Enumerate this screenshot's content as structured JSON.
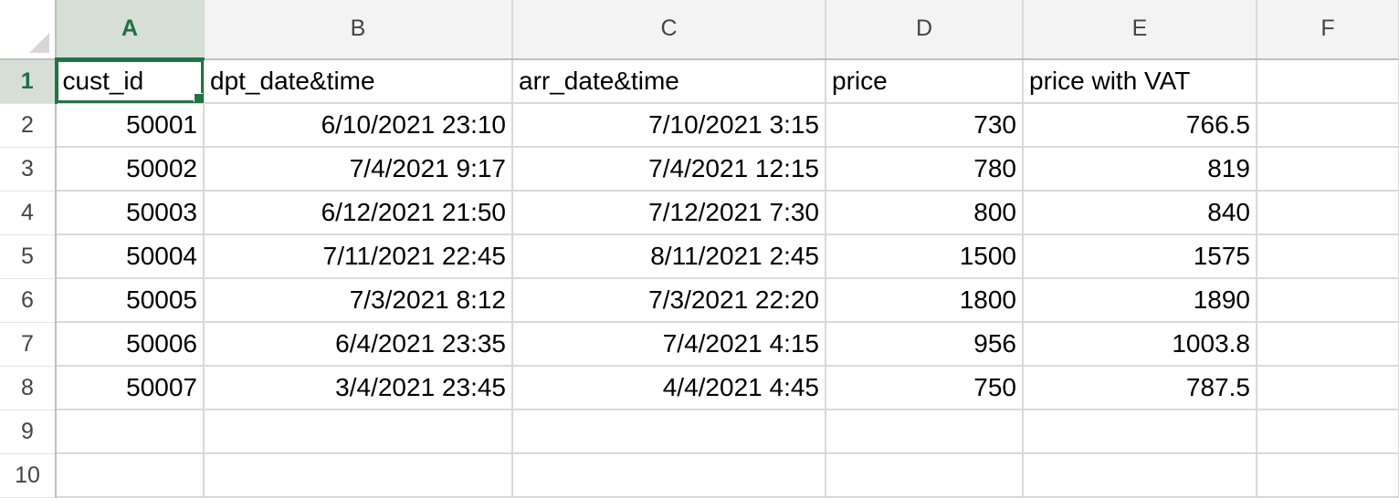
{
  "columns": [
    "A",
    "B",
    "C",
    "D",
    "E",
    "F"
  ],
  "row_numbers": [
    "1",
    "2",
    "3",
    "4",
    "5",
    "6",
    "7",
    "8",
    "9",
    "10"
  ],
  "header_row": [
    "cust_id",
    "dpt_date&time",
    "arr_date&time",
    "price",
    "price with VAT",
    ""
  ],
  "rows": [
    [
      "50001",
      "6/10/2021 23:10",
      "7/10/2021 3:15",
      "730",
      "766.5",
      ""
    ],
    [
      "50002",
      "7/4/2021 9:17",
      "7/4/2021 12:15",
      "780",
      "819",
      ""
    ],
    [
      "50003",
      "6/12/2021 21:50",
      "7/12/2021 7:30",
      "800",
      "840",
      ""
    ],
    [
      "50004",
      "7/11/2021 22:45",
      "8/11/2021 2:45",
      "1500",
      "1575",
      ""
    ],
    [
      "50005",
      "7/3/2021 8:12",
      "7/3/2021 22:20",
      "1800",
      "1890",
      ""
    ],
    [
      "50006",
      "6/4/2021 23:35",
      "7/4/2021 4:15",
      "956",
      "1003.8",
      ""
    ],
    [
      "50007",
      "3/4/2021 23:45",
      "4/4/2021 4:45",
      "750",
      "787.5",
      ""
    ]
  ],
  "active_cell": "A1",
  "colors": {
    "selection": "#217346",
    "header_highlight": "#d6dfd6"
  }
}
